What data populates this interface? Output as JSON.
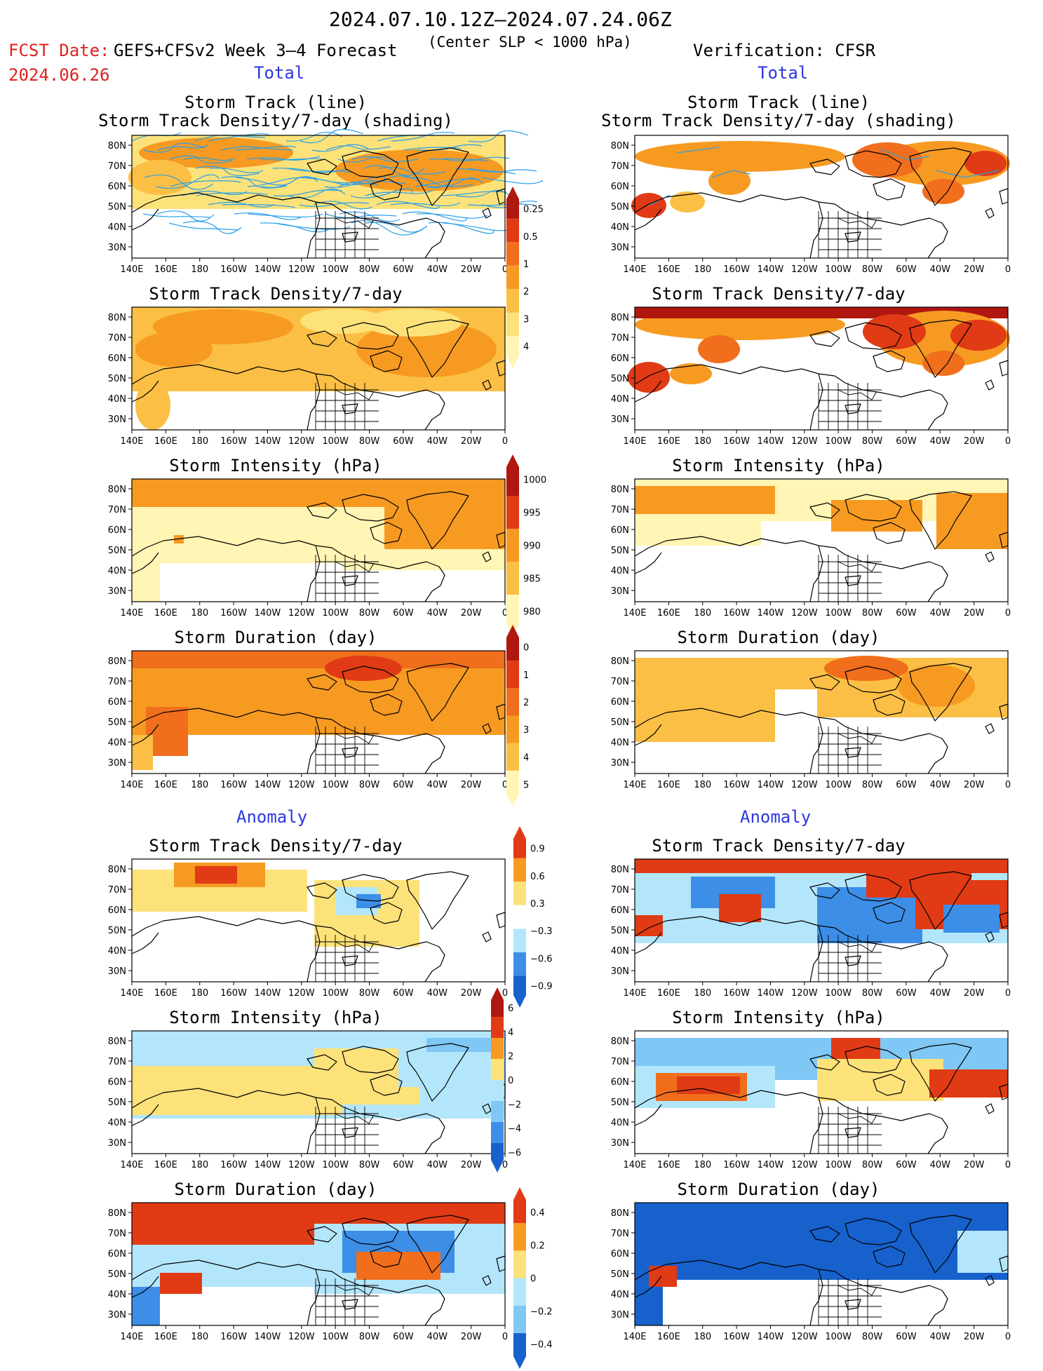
{
  "header": {
    "date_range": "2024.07.10.12Z–2024.07.24.06Z",
    "fcst_label": "FCST Date:",
    "fcst_date": "2024.06.26",
    "model_label": "GEFS+CFSv2 Week 3–4 Forecast",
    "criteria": "(Center SLP < 1000 hPa)",
    "verification": "Verification: CFSR"
  },
  "sections": {
    "total_left": "Total",
    "total_right": "Total",
    "anomaly_left": "Anomaly",
    "anomaly_right": "Anomaly"
  },
  "panel_titles": {
    "track_line": "Storm Track (line)",
    "track_density_shading": "Storm Track Density/7-day (shading)",
    "track_density": "Storm Track Density/7-day",
    "intensity": "Storm Intensity (hPa)",
    "duration": "Storm Duration (day)"
  },
  "axes": {
    "lat_ticks": [
      "80N",
      "70N",
      "60N",
      "50N",
      "40N",
      "30N"
    ],
    "lon_ticks": [
      "140E",
      "160E",
      "180",
      "160W",
      "140W",
      "120W",
      "100W",
      "80W",
      "60W",
      "40W",
      "20W",
      "0"
    ]
  },
  "colorbars": {
    "density_total": [
      "0.25",
      "0.5",
      "1",
      "2",
      "3",
      "4"
    ],
    "intensity_total": [
      "1000",
      "995",
      "990",
      "985",
      "980"
    ],
    "duration_total": [
      "0",
      "1",
      "2",
      "3",
      "4",
      "5"
    ],
    "density_anom": [
      "0.9",
      "0.6",
      "0.3",
      "−0.3",
      "−0.6",
      "−0.9"
    ],
    "intensity_anom": [
      "6",
      "4",
      "2",
      "0",
      "−2",
      "−4",
      "−6"
    ],
    "duration_anom": [
      "0.4",
      "0.2",
      "0",
      "−0.2",
      "−0.4"
    ]
  },
  "colors": {
    "light_yellow": "#fff5b4",
    "yellow": "#fde27a",
    "gold": "#fbbf45",
    "orange": "#f79a22",
    "dark_orange": "#f06e1c",
    "red": "#e03b15",
    "dark_red": "#b0170f",
    "light_blue": "#b3e6fb",
    "sky_blue": "#7fc8f5",
    "blue": "#3d8ee6",
    "dark_blue": "#1761cc",
    "track_line": "#2aa0e8",
    "header_red": "#e02020",
    "header_blue": "#2a36e0"
  }
}
